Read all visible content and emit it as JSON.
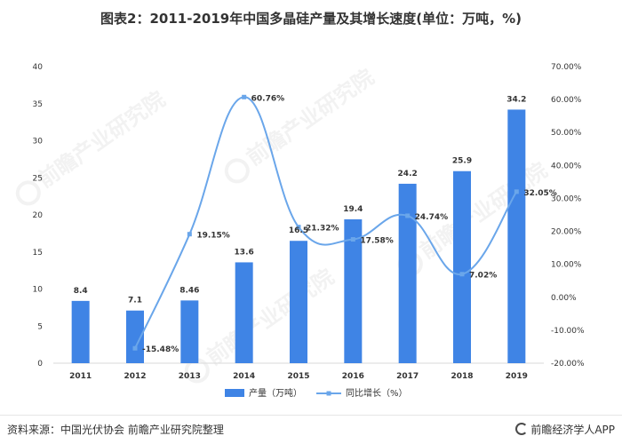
{
  "title": "图表2：2011-2019年中国多晶硅产量及其增长速度(单位：万吨，%)",
  "source_text": "资料来源：中国光伏协会 前瞻产业研究院整理",
  "brand_text": "前瞻经济学人APP",
  "watermark_text": "前瞻产业研究院",
  "colors": {
    "bar": "#3f84e5",
    "line": "#6aa6ea",
    "axis": "#d9d9d9",
    "text": "#333333"
  },
  "chart_data": {
    "type": "bar",
    "categories": [
      "2011",
      "2012",
      "2013",
      "2014",
      "2015",
      "2016",
      "2017",
      "2018",
      "2019"
    ],
    "series": [
      {
        "name": "产量（万吨）",
        "kind": "bar",
        "axis": "left",
        "values": [
          8.4,
          7.1,
          8.46,
          13.6,
          16.5,
          19.4,
          24.2,
          25.9,
          34.2
        ],
        "labels": [
          "8.4",
          "7.1",
          "8.46",
          "13.6",
          "16.5",
          "19.4",
          "24.2",
          "25.9",
          "34.2"
        ]
      },
      {
        "name": "同比增长（%）",
        "kind": "line",
        "axis": "right",
        "values": [
          null,
          -15.48,
          19.15,
          60.76,
          21.32,
          17.58,
          24.74,
          7.02,
          32.05
        ],
        "labels": [
          "",
          "-15.48%",
          "19.15%",
          "60.76%",
          "21.32%",
          "17.58%",
          "24.74%",
          "7.02%",
          "32.05%"
        ]
      }
    ],
    "y_left": {
      "min": 0,
      "max": 40,
      "ticks": [
        "0",
        "5",
        "10",
        "15",
        "20",
        "25",
        "30",
        "35",
        "40"
      ]
    },
    "y_right": {
      "min": -20,
      "max": 70,
      "ticks": [
        "-20.00%",
        "-10.00%",
        "0.00%",
        "10.00%",
        "20.00%",
        "30.00%",
        "40.00%",
        "50.00%",
        "60.00%",
        "70.00%"
      ]
    },
    "legend": "bottom-center",
    "grid": false,
    "line_smooth": true
  }
}
